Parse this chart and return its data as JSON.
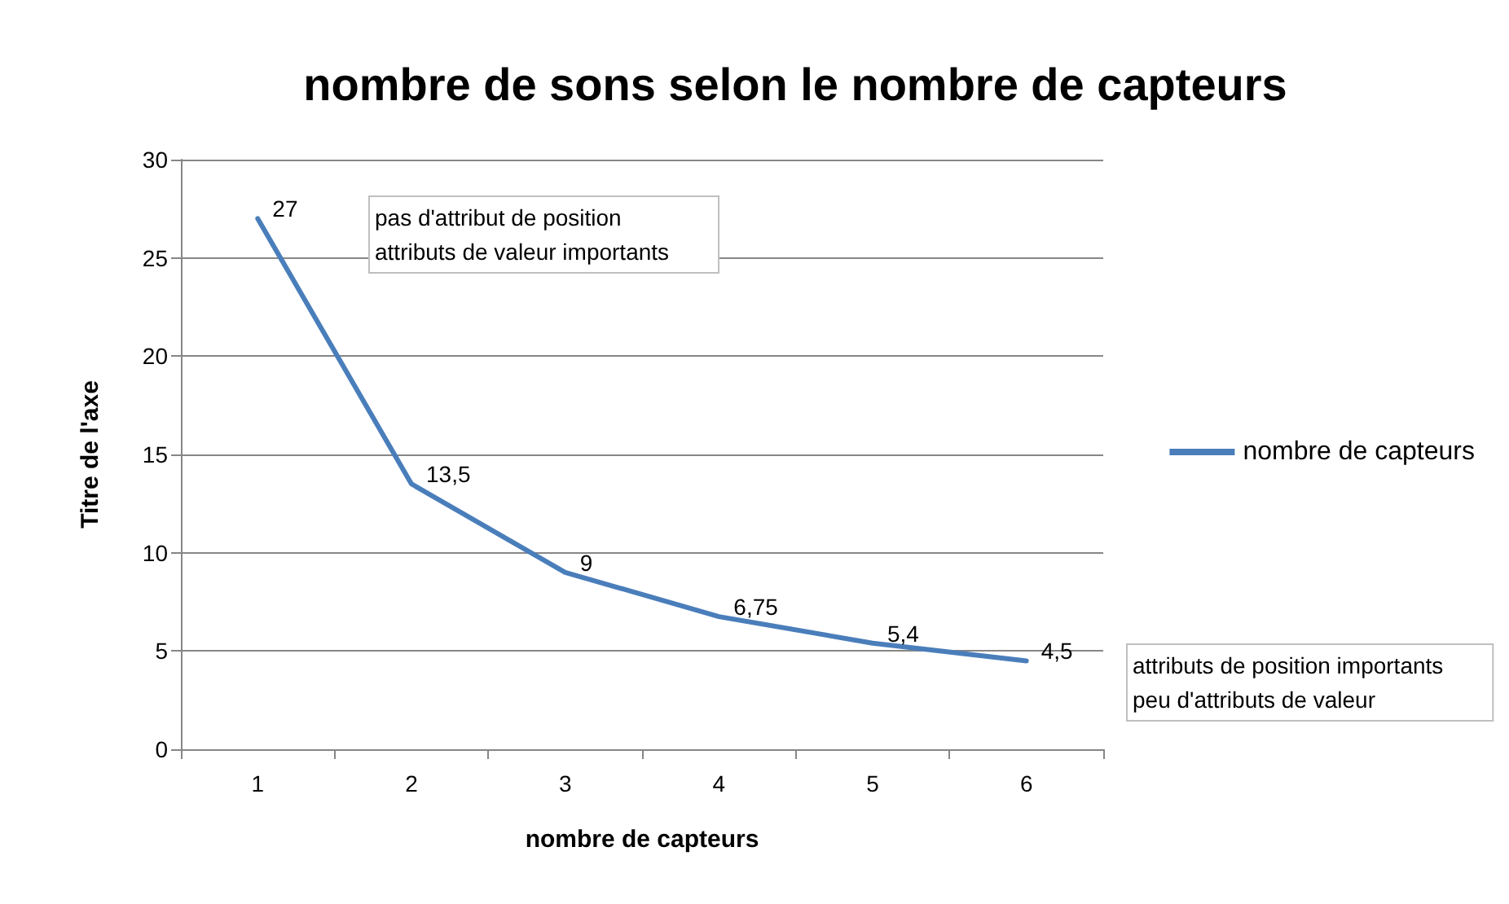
{
  "chart_data": {
    "type": "line",
    "title": "nombre de sons selon le nombre de capteurs",
    "xlabel": "nombre de capteurs",
    "ylabel": "Titre de l'axe",
    "categories": [
      "1",
      "2",
      "3",
      "4",
      "5",
      "6"
    ],
    "series": [
      {
        "name": "nombre de capteurs",
        "color": "#4a7ebb",
        "values": [
          27,
          13.5,
          9,
          6.75,
          5.4,
          4.5
        ],
        "value_labels": [
          "27",
          "13,5",
          "9",
          "6,75",
          "5,4",
          "4,5"
        ]
      }
    ],
    "ylim": [
      0,
      30
    ],
    "yticks": [
      0,
      5,
      10,
      15,
      20,
      25,
      30
    ],
    "grid": "y",
    "legend": "right",
    "marker": "none",
    "line_style": "solid",
    "annotations": [
      "pas d'attribut de position\nattributs de valeur importants",
      "attributs de position importants\npeu d'attributs de valeur"
    ]
  }
}
